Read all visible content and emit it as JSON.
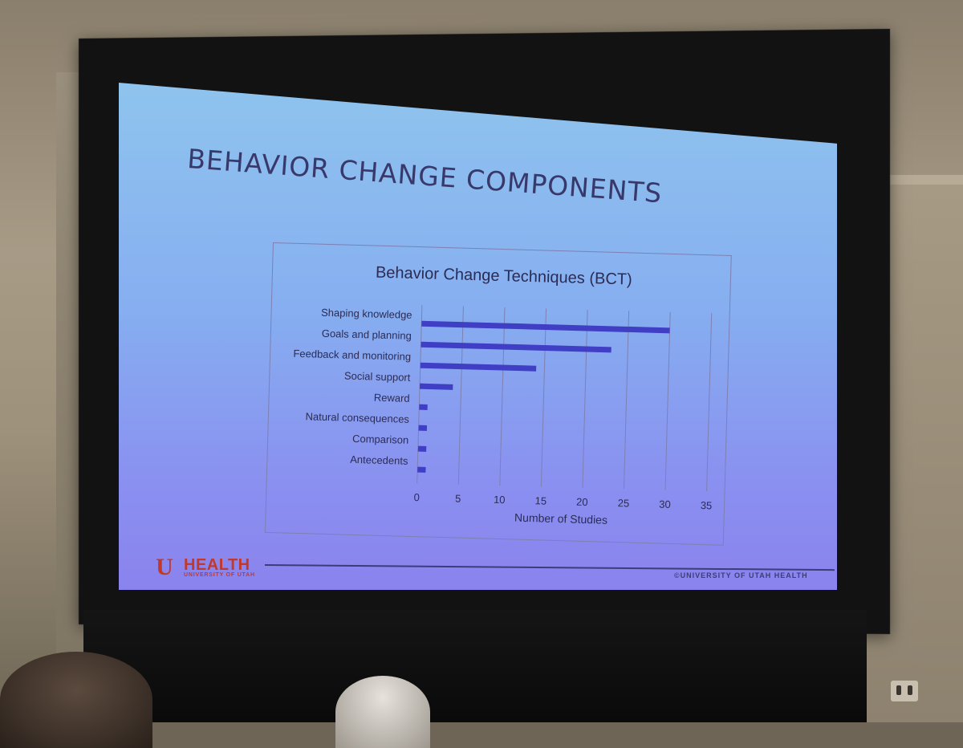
{
  "slide": {
    "title": "BEHAVIOR CHANGE COMPONENTS",
    "footer_copyright": "©UNIVERSITY OF UTAH HEALTH",
    "logo_text": "HEALTH",
    "logo_subtext": "UNIVERSITY OF UTAH"
  },
  "colors": {
    "bar": "#3f3ec4",
    "grid": "#7d80b3",
    "text": "#2b2c55",
    "logo": "#c0392b"
  },
  "chart_data": {
    "type": "bar",
    "orientation": "horizontal",
    "title": "Behavior Change Techniques (BCT)",
    "xlabel": "Number of Studies",
    "ylabel": "",
    "categories": [
      "Shaping knowledge",
      "Goals and planning",
      "Feedback and monitoring",
      "Social support",
      "Reward",
      "Natural consequences",
      "Comparison",
      "Antecedents"
    ],
    "values": [
      30,
      23,
      14,
      4,
      1,
      1,
      1,
      1
    ],
    "xlim": [
      0,
      35
    ],
    "xticks": [
      0,
      5,
      10,
      15,
      20,
      25,
      30,
      35
    ],
    "grid": "vertical",
    "legend": "none"
  }
}
